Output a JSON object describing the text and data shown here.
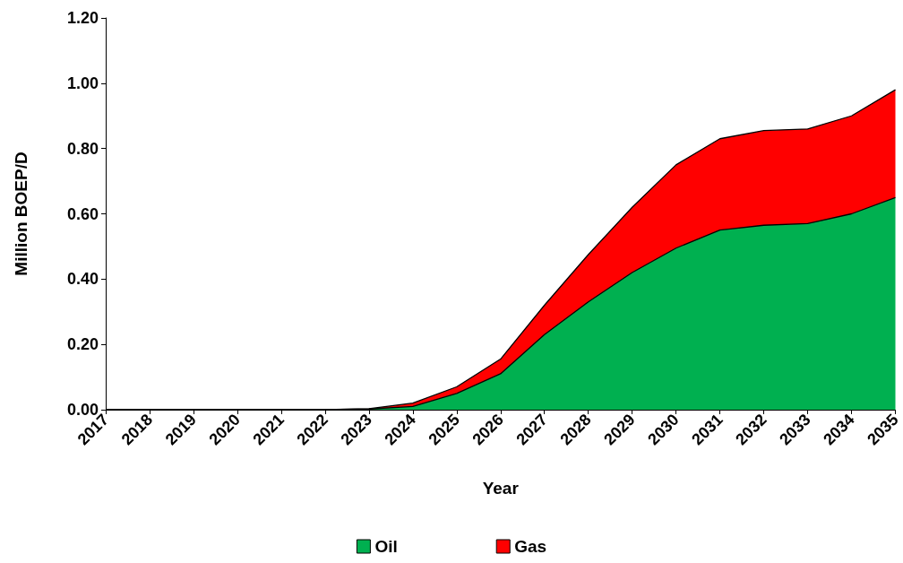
{
  "chart_data": {
    "type": "area",
    "stacked": true,
    "xlabel": "Year",
    "ylabel": "Million BOEP/D",
    "categories": [
      "2017",
      "2018",
      "2019",
      "2020",
      "2021",
      "2022",
      "2023",
      "2024",
      "2025",
      "2026",
      "2027",
      "2028",
      "2029",
      "2030",
      "2031",
      "2032",
      "2033",
      "2034",
      "2035"
    ],
    "series": [
      {
        "name": "Oil",
        "color": "#00b050",
        "values": [
          0,
          0,
          0,
          0,
          0,
          0,
          0.002,
          0.01,
          0.05,
          0.11,
          0.23,
          0.33,
          0.42,
          0.495,
          0.55,
          0.565,
          0.57,
          0.6,
          0.65
        ]
      },
      {
        "name": "Gas",
        "color": "#ff0000",
        "values": [
          0,
          0,
          0,
          0,
          0,
          0,
          0.001,
          0.01,
          0.02,
          0.045,
          0.09,
          0.145,
          0.2,
          0.255,
          0.28,
          0.29,
          0.29,
          0.3,
          0.33
        ]
      }
    ],
    "ylim": [
      0,
      1.2
    ],
    "yticks": [
      {
        "value": 0,
        "label": "0.00"
      },
      {
        "value": 0.2,
        "label": "0.20"
      },
      {
        "value": 0.4,
        "label": "0.40"
      },
      {
        "value": 0.6,
        "label": "0.60"
      },
      {
        "value": 0.8,
        "label": "0.80"
      },
      {
        "value": 1.0,
        "label": "1.00"
      },
      {
        "value": 1.2,
        "label": "1.20"
      }
    ],
    "grid": false,
    "legend": "bottom"
  }
}
